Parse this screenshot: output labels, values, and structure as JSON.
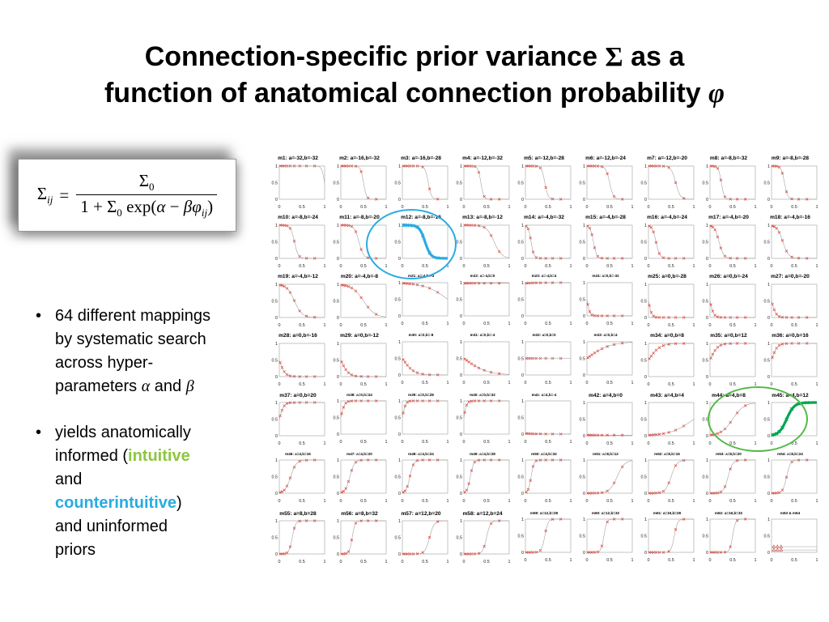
{
  "title": {
    "l1a": "Connection-specific prior variance ",
    "sigma": "Σ",
    "l1b": " as a",
    "l2a": "function of anatomical connection probability ",
    "phi": "φ"
  },
  "formula": {
    "lhs_sigma": "Σ",
    "lhs_sub": "ij",
    "equals": "=",
    "num_sigma": "Σ",
    "num_sub": "0",
    "den_pre": "1 + ",
    "den_sigma": "Σ",
    "den_sub": "0",
    "den_fn": " exp(",
    "den_alpha": "α",
    "den_op": " − ",
    "den_beta": "β",
    "den_phi": "φ",
    "den_phi_sub": "ij",
    "den_close": ")"
  },
  "bullets": {
    "marker": "•",
    "b1": {
      "pre": "64 different mappings by systematic search across hyper-parameters ",
      "alpha": "α",
      "mid": " and ",
      "beta": "β"
    },
    "b2": {
      "pre": "yields anatomically informed (",
      "intuitive": "intuitive",
      "mid": " and ",
      "counter": "counterintuitive",
      "post": ") and uninformed priors"
    }
  },
  "colors": {
    "intuitive_green": "#8DC63F",
    "counterintuitive_cyan": "#29ABE2",
    "ellipse_blue": "#29ABE2",
    "ellipse_green": "#54B948",
    "curve_gray": "#9a9a9a",
    "marker_red": "#d9453a"
  },
  "chart_data": {
    "type": "line",
    "layout": "small-multiples-grid",
    "columns": 9,
    "rows": 7,
    "function": "sigma(phi) = Sigma0 / (1 + Sigma0 * exp(a - b*phi)), Sigma0 = 1",
    "x_range": [
      0,
      1
    ],
    "y_range": [
      0,
      1
    ],
    "x_ticks": [
      "0",
      "0.5",
      "1"
    ],
    "y_ticks": [
      "0",
      "0.5",
      "1"
    ],
    "marker_phis": [
      0.02,
      0.06,
      0.11,
      0.17,
      0.24,
      0.33,
      0.45,
      0.6,
      0.78
    ],
    "highlight_colors": {
      "cyan": "#29ABE2",
      "green": "#00A651"
    },
    "cells": [
      {
        "id": "m1",
        "label": "m1: a=-32,b=-32",
        "a": -32,
        "b": -32
      },
      {
        "id": "m2",
        "label": "m2: a=-16,b=-32",
        "a": -16,
        "b": -32
      },
      {
        "id": "m3",
        "label": "m3: a=-16,b=-28",
        "a": -16,
        "b": -28
      },
      {
        "id": "m4",
        "label": "m4: a=-12,b=-32",
        "a": -12,
        "b": -32
      },
      {
        "id": "m5",
        "label": "m5: a=-12,b=-28",
        "a": -12,
        "b": -28
      },
      {
        "id": "m6",
        "label": "m6: a=-12,b=-24",
        "a": -12,
        "b": -24
      },
      {
        "id": "m7",
        "label": "m7: a=-12,b=-20",
        "a": -12,
        "b": -20
      },
      {
        "id": "m8",
        "label": "m8: a=-8,b=-32",
        "a": -8,
        "b": -32
      },
      {
        "id": "m9",
        "label": "m9: a=-8,b=-28",
        "a": -8,
        "b": -28
      },
      {
        "id": "m10",
        "label": "m10: a=-8,b=-24",
        "a": -8,
        "b": -24
      },
      {
        "id": "m11",
        "label": "m11: a=-8,b=-20",
        "a": -8,
        "b": -20
      },
      {
        "id": "m12",
        "label": "m12: a=-8,b=-16",
        "a": -8,
        "b": -16,
        "style": "cyan"
      },
      {
        "id": "m13",
        "label": "m13: a=-8,b=-12",
        "a": -8,
        "b": -12
      },
      {
        "id": "m14",
        "label": "m14: a=-4,b=-32",
        "a": -4,
        "b": -32
      },
      {
        "id": "m15",
        "label": "m15: a=-4,b=-28",
        "a": -4,
        "b": -28
      },
      {
        "id": "m16",
        "label": "m16: a=-4,b=-24",
        "a": -4,
        "b": -24
      },
      {
        "id": "m17",
        "label": "m17: a=-4,b=-20",
        "a": -4,
        "b": -20
      },
      {
        "id": "m18",
        "label": "m18: a=-4,b=-16",
        "a": -4,
        "b": -16
      },
      {
        "id": "m19",
        "label": "m19: a=-4,b=-12",
        "a": -4,
        "b": -12
      },
      {
        "id": "m20",
        "label": "m20: a=-4,b=-8",
        "a": -4,
        "b": -8
      },
      {
        "id": "m21",
        "label": "m21: a=-4,b=-4",
        "a": -4,
        "b": -4,
        "small": true
      },
      {
        "id": "m22",
        "label": "m22: a=-4,b=0",
        "a": -4,
        "b": 0,
        "small": true
      },
      {
        "id": "m23",
        "label": "m23: a=-4,b=4",
        "a": -4,
        "b": 4,
        "small": true
      },
      {
        "id": "m24",
        "label": "m24: a=0,b=-32",
        "a": 0,
        "b": -32,
        "small": true
      },
      {
        "id": "m25",
        "label": "m25: a=0,b=-28",
        "a": 0,
        "b": -28
      },
      {
        "id": "m26",
        "label": "m26: a=0,b=-24",
        "a": 0,
        "b": -24
      },
      {
        "id": "m27",
        "label": "m27: a=0,b=-20",
        "a": 0,
        "b": -20
      },
      {
        "id": "m28",
        "label": "m28: a=0,b=-16",
        "a": 0,
        "b": -16
      },
      {
        "id": "m29",
        "label": "m29: a=0,b=-12",
        "a": 0,
        "b": -12
      },
      {
        "id": "m30",
        "label": "m30: a=0,b=-8",
        "a": 0,
        "b": -8,
        "small": true
      },
      {
        "id": "m31",
        "label": "m31: a=0,b=-4",
        "a": 0,
        "b": -4,
        "small": true
      },
      {
        "id": "m32",
        "label": "m32: a=0,b=0",
        "a": 0,
        "b": 0,
        "small": true
      },
      {
        "id": "m33",
        "label": "m33: a=0,b=4",
        "a": 0,
        "b": 4,
        "small": true
      },
      {
        "id": "m34",
        "label": "m34: a=0,b=8",
        "a": 0,
        "b": 8
      },
      {
        "id": "m35",
        "label": "m35: a=0,b=12",
        "a": 0,
        "b": 12
      },
      {
        "id": "m36",
        "label": "m36: a=0,b=16",
        "a": 0,
        "b": 16
      },
      {
        "id": "m37",
        "label": "m37: a=0,b=20",
        "a": 0,
        "b": 20
      },
      {
        "id": "m38",
        "label": "m38: a=0,b=24",
        "a": 0,
        "b": 24,
        "small": true
      },
      {
        "id": "m39",
        "label": "m39: a=0,b=28",
        "a": 0,
        "b": 28,
        "small": true
      },
      {
        "id": "m40",
        "label": "m40: a=0,b=32",
        "a": 0,
        "b": 32,
        "small": true
      },
      {
        "id": "m41",
        "label": "m41: a=4,b=-4",
        "a": 4,
        "b": -4,
        "small": true
      },
      {
        "id": "m42",
        "label": "m42: a=4,b=0",
        "a": 4,
        "b": 0
      },
      {
        "id": "m43",
        "label": "m43: a=4,b=4",
        "a": 4,
        "b": 4
      },
      {
        "id": "m44",
        "label": "m44: a=4,b=8",
        "a": 4,
        "b": 8
      },
      {
        "id": "m45",
        "label": "m45: a=4,b=12",
        "a": 4,
        "b": 12,
        "style": "green"
      },
      {
        "id": "m46",
        "label": "m46: a=4,b=16",
        "a": 4,
        "b": 16,
        "small": true
      },
      {
        "id": "m47",
        "label": "m47: a=4,b=20",
        "a": 4,
        "b": 20,
        "small": true
      },
      {
        "id": "m48",
        "label": "m48: a=4,b=24",
        "a": 4,
        "b": 24,
        "small": true
      },
      {
        "id": "m49",
        "label": "m49: a=4,b=28",
        "a": 4,
        "b": 28,
        "small": true
      },
      {
        "id": "m50",
        "label": "m50: a=4,b=32",
        "a": 4,
        "b": 32,
        "small": true
      },
      {
        "id": "m51",
        "label": "m51: a=8,b=12",
        "a": 8,
        "b": 12,
        "small": true
      },
      {
        "id": "m52",
        "label": "m52: a=8,b=16",
        "a": 8,
        "b": 16,
        "small": true
      },
      {
        "id": "m53",
        "label": "m53: a=8,b=20",
        "a": 8,
        "b": 20,
        "small": true
      },
      {
        "id": "m54",
        "label": "m54: a=8,b=24",
        "a": 8,
        "b": 24,
        "small": true
      },
      {
        "id": "m55",
        "label": "m55: a=8,b=28",
        "a": 8,
        "b": 28
      },
      {
        "id": "m56",
        "label": "m56: a=8,b=32",
        "a": 8,
        "b": 32
      },
      {
        "id": "m57",
        "label": "m57: a=12,b=20",
        "a": 12,
        "b": 20
      },
      {
        "id": "m58",
        "label": "m58: a=12,b=24",
        "a": 12,
        "b": 24
      },
      {
        "id": "m59",
        "label": "m59: a=12,b=28",
        "a": 12,
        "b": 28,
        "small": true
      },
      {
        "id": "m60",
        "label": "m60: a=12,b=32",
        "a": 12,
        "b": 32,
        "small": true
      },
      {
        "id": "m61",
        "label": "m61: a=16,b=28",
        "a": 16,
        "b": 28,
        "small": true
      },
      {
        "id": "m62",
        "label": "m62: a=16,b=32",
        "a": 16,
        "b": 32,
        "small": true
      },
      {
        "id": "m63_64",
        "label": "m63 & m64",
        "style": "flat",
        "small": true
      }
    ]
  }
}
